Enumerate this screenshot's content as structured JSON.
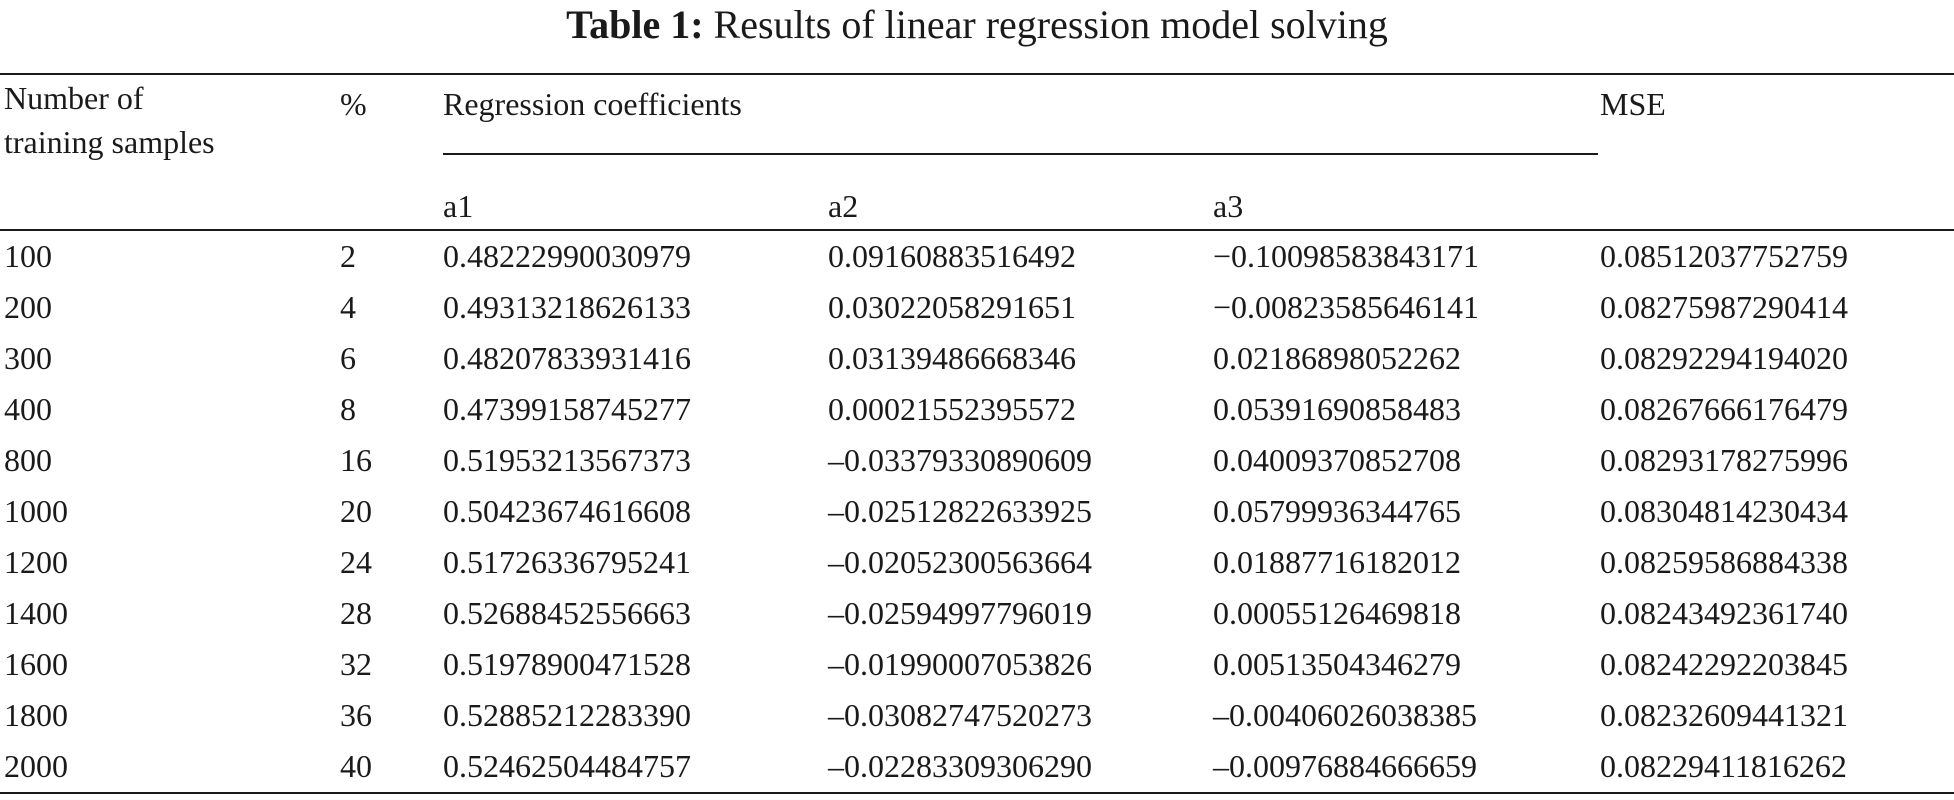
{
  "caption": {
    "label": "Table 1:",
    "text": "Results of linear regression model solving"
  },
  "header": {
    "samples_line1": "Number of",
    "samples_line2": "training samples",
    "percent": "%",
    "coefficients": "Regression coefficients",
    "mse": "MSE",
    "a1": "a1",
    "a2": "a2",
    "a3": "a3"
  },
  "rows": [
    {
      "samples": "100",
      "percent": "2",
      "a1": "0.48222990030979",
      "a2": "0.09160883516492",
      "a3": "−0.10098583843171",
      "mse": "0.08512037752759"
    },
    {
      "samples": "200",
      "percent": "4",
      "a1": "0.49313218626133",
      "a2": "0.03022058291651",
      "a3": "−0.00823585646141",
      "mse": "0.08275987290414"
    },
    {
      "samples": "300",
      "percent": "6",
      "a1": "0.48207833931416",
      "a2": "0.03139486668346",
      "a3": "0.02186898052262",
      "mse": "0.08292294194020"
    },
    {
      "samples": "400",
      "percent": "8",
      "a1": "0.47399158745277",
      "a2": "0.00021552395572",
      "a3": "0.05391690858483",
      "mse": "0.08267666176479"
    },
    {
      "samples": "800",
      "percent": "16",
      "a1": "0.51953213567373",
      "a2": "–0.03379330890609",
      "a3": "0.04009370852708",
      "mse": "0.08293178275996"
    },
    {
      "samples": "1000",
      "percent": "20",
      "a1": "0.50423674616608",
      "a2": "–0.02512822633925",
      "a3": "0.05799936344765",
      "mse": "0.08304814230434"
    },
    {
      "samples": "1200",
      "percent": "24",
      "a1": "0.51726336795241",
      "a2": "–0.02052300563664",
      "a3": "0.01887716182012",
      "mse": "0.08259586884338"
    },
    {
      "samples": "1400",
      "percent": "28",
      "a1": "0.52688452556663",
      "a2": "–0.02594997796019",
      "a3": "0.00055126469818",
      "mse": "0.08243492361740"
    },
    {
      "samples": "1600",
      "percent": "32",
      "a1": "0.51978900471528",
      "a2": "–0.01990007053826",
      "a3": "0.00513504346279",
      "mse": "0.08242292203845"
    },
    {
      "samples": "1800",
      "percent": "36",
      "a1": "0.52885212283390",
      "a2": "–0.03082747520273",
      "a3": "–0.00406026038385",
      "mse": "0.08232609441321"
    },
    {
      "samples": "2000",
      "percent": "40",
      "a1": "0.52462504484757",
      "a2": "–0.02283309306290",
      "a3": "–0.00976884666659",
      "mse": "0.08229411816262"
    }
  ]
}
